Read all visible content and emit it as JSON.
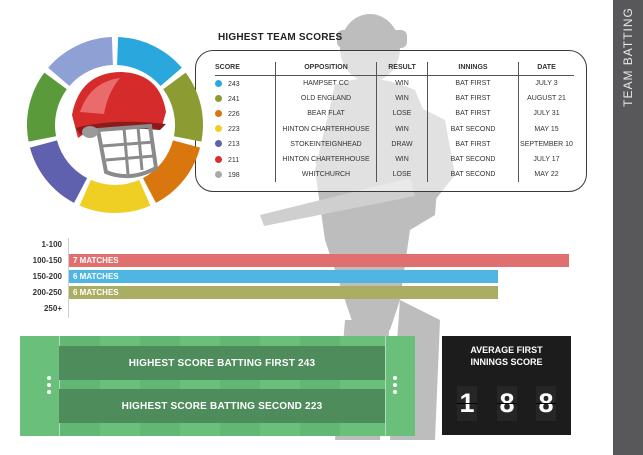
{
  "sidebar": {
    "title": "TEAM BATTING"
  },
  "scores": {
    "title": "HIGHEST TEAM SCORES",
    "columns": [
      "SCORE",
      "OPPOSITION",
      "RESULT",
      "INNINGS",
      "DATE"
    ],
    "rows": [
      {
        "score": "243",
        "opposition": "HAMPSET CC",
        "result": "WIN",
        "innings": "BAT FIRST",
        "date": "JULY 3",
        "color": "#2aa7dc"
      },
      {
        "score": "241",
        "opposition": "OLD ENGLAND",
        "result": "WIN",
        "innings": "BAT FIRST",
        "date": "AUGUST 21",
        "color": "#8d9b33"
      },
      {
        "score": "226",
        "opposition": "BEAR FLAT",
        "result": "LOSE",
        "innings": "BAT FIRST",
        "date": "JULY 31",
        "color": "#d9760e"
      },
      {
        "score": "223",
        "opposition": "HINTON CHARTERHOUSE",
        "result": "WIN",
        "innings": "BAT SECOND",
        "date": "MAY 15",
        "color": "#f0cf25"
      },
      {
        "score": "213",
        "opposition": "STOKEINTEIGNHEAD",
        "result": "DRAW",
        "innings": "BAT FIRST",
        "date": "SEPTEMBER 10",
        "color": "#5f60ae"
      },
      {
        "score": "211",
        "opposition": "HINTON CHARTERHOUSE",
        "result": "WIN",
        "innings": "BAT SECOND",
        "date": "JULY 17",
        "color": "#d9302c"
      },
      {
        "score": "198",
        "opposition": "WHITCHURCH",
        "result": "LOSE",
        "innings": "BAT SECOND",
        "date": "MAY 22",
        "color": "#a9a9a9"
      }
    ]
  },
  "donut": {
    "segments": [
      {
        "name": "blue",
        "color": "#2aa7dc"
      },
      {
        "name": "olive",
        "color": "#8d9b33"
      },
      {
        "name": "orange",
        "color": "#d9760e"
      },
      {
        "name": "yellow",
        "color": "#f0cf25"
      },
      {
        "name": "purple",
        "color": "#5f60ae"
      },
      {
        "name": "green",
        "color": "#5a9a3a"
      },
      {
        "name": "lavender",
        "color": "#8ea0d4"
      }
    ],
    "icon": "cricket-helmet-icon"
  },
  "ranges": {
    "labels": [
      "1-100",
      "100-150",
      "150-200",
      "200-250",
      "250+"
    ],
    "bars": [
      {
        "label": "7 MATCHES",
        "matches": 7,
        "color": "#e07070"
      },
      {
        "label": "6 MATCHES",
        "matches": 6,
        "color": "#4fb6e3"
      },
      {
        "label": "6 MATCHES",
        "matches": 6,
        "color": "#a9ae62"
      }
    ]
  },
  "pitch": {
    "first": "HIGHEST SCORE BATTING FIRST 243",
    "second": "HIGHEST SCORE BATTING SECOND 223"
  },
  "average": {
    "title_line1": "AVERAGE FIRST",
    "title_line2": "INNINGS SCORE",
    "digits": [
      "1",
      "8",
      "8"
    ]
  }
}
